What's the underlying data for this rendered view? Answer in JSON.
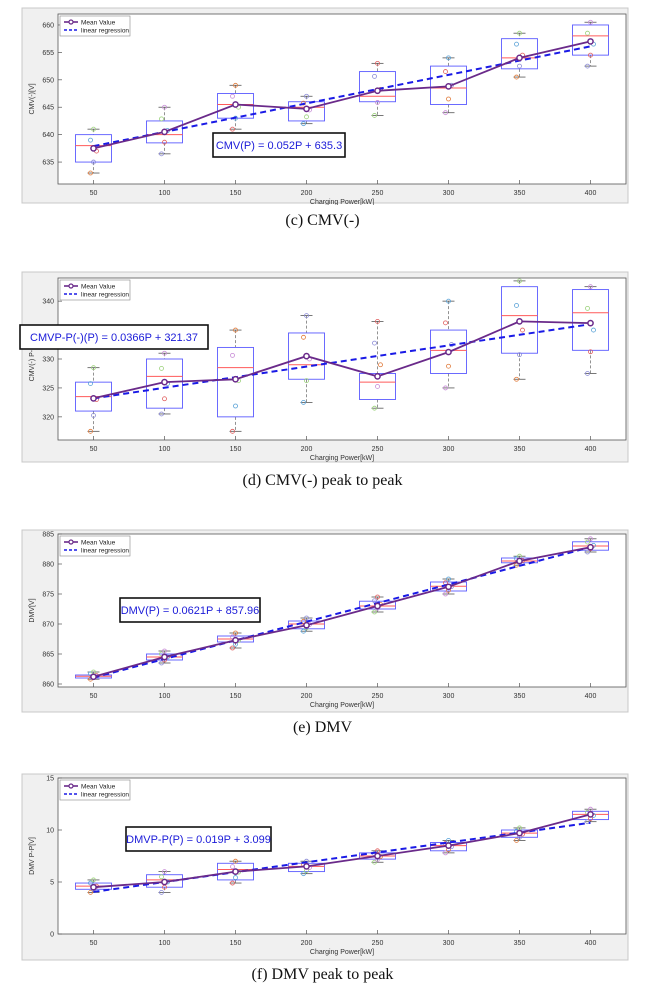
{
  "chart_data": [
    {
      "type": "box",
      "caption": "(c)  CMV(-)",
      "xlabel": "Charging Power[kW]",
      "ylabel": "CMV(-)[V]",
      "categories": [
        "50",
        "100",
        "150",
        "200",
        "250",
        "300",
        "350",
        "400"
      ],
      "ylim": [
        631,
        662
      ],
      "yticks": [
        635,
        640,
        645,
        650,
        655,
        660
      ],
      "legend": [
        "Mean Value",
        "linear regression"
      ],
      "legend_position": "top-left",
      "equation": "CMV(P) = 0.052P + 635.3",
      "series": [
        {
          "name": "Mean Value",
          "values": [
            637.5,
            640.5,
            645.5,
            644.7,
            648.0,
            648.8,
            654.0,
            657.0
          ]
        },
        {
          "name": "linear regression",
          "slope": 0.052,
          "intercept": 635.3
        }
      ],
      "boxes": [
        {
          "q1": 635,
          "median": 638,
          "q3": 640,
          "min": 633,
          "max": 641
        },
        {
          "q1": 638.5,
          "median": 640,
          "q3": 642.5,
          "min": 636.5,
          "max": 645
        },
        {
          "q1": 643,
          "median": 645.5,
          "q3": 647.5,
          "min": 641,
          "max": 649
        },
        {
          "q1": 642.5,
          "median": 645,
          "q3": 646,
          "min": 642,
          "max": 647
        },
        {
          "q1": 646,
          "median": 647,
          "q3": 651.5,
          "min": 643.5,
          "max": 653
        },
        {
          "q1": 645.5,
          "median": 648.5,
          "q3": 652.5,
          "min": 644,
          "max": 654
        },
        {
          "q1": 652,
          "median": 654,
          "q3": 657.5,
          "min": 650.5,
          "max": 658.5
        },
        {
          "q1": 654.5,
          "median": 658,
          "q3": 660,
          "min": 652.5,
          "max": 660.5
        }
      ]
    },
    {
      "type": "box",
      "caption": "(d)  CMV(-)  peak  to  peak",
      "xlabel": "Charging Power[kW]",
      "ylabel": "CMV(-) P-P[V]",
      "categories": [
        "50",
        "100",
        "150",
        "200",
        "250",
        "300",
        "350",
        "400"
      ],
      "ylim": [
        316,
        344
      ],
      "yticks": [
        320,
        325,
        330,
        335,
        340
      ],
      "legend": [
        "Mean Value",
        "linear regression"
      ],
      "legend_position": "top-left",
      "equation": "CMVP-P(-)(P) = 0.0366P + 321.37",
      "series": [
        {
          "name": "Mean Value",
          "values": [
            323.2,
            326.0,
            326.5,
            330.5,
            327.0,
            331.2,
            336.5,
            336.2
          ]
        },
        {
          "name": "linear regression",
          "slope": 0.0366,
          "intercept": 321.37
        }
      ],
      "boxes": [
        {
          "q1": 321,
          "median": 323.5,
          "q3": 326,
          "min": 317.5,
          "max": 328.5
        },
        {
          "q1": 321.5,
          "median": 327,
          "q3": 330,
          "min": 320.5,
          "max": 331
        },
        {
          "q1": 320,
          "median": 328.5,
          "q3": 332,
          "min": 317.5,
          "max": 335
        },
        {
          "q1": 326.5,
          "median": 329,
          "q3": 334.5,
          "min": 322.5,
          "max": 337.5
        },
        {
          "q1": 323,
          "median": 326,
          "q3": 327.5,
          "min": 321.5,
          "max": 336.5
        },
        {
          "q1": 327.5,
          "median": 331.5,
          "q3": 335,
          "min": 325,
          "max": 340
        },
        {
          "q1": 331,
          "median": 337.5,
          "q3": 342.5,
          "min": 326.5,
          "max": 343.5
        },
        {
          "q1": 331.5,
          "median": 338,
          "q3": 342,
          "min": 327.5,
          "max": 342.5
        }
      ]
    },
    {
      "type": "box",
      "caption": "(e)  DMV",
      "xlabel": "Charging Power[kW]",
      "ylabel": "DMV[V]",
      "categories": [
        "50",
        "100",
        "150",
        "200",
        "250",
        "300",
        "350",
        "400"
      ],
      "ylim": [
        859.5,
        885
      ],
      "yticks": [
        860,
        865,
        870,
        875,
        880,
        885
      ],
      "legend": [
        "Mean Value",
        "linear regression"
      ],
      "legend_position": "top-left",
      "equation": "DMV(P) = 0.0621P + 857.96",
      "series": [
        {
          "name": "Mean Value",
          "values": [
            861.2,
            864.5,
            867.3,
            869.8,
            873.0,
            876.2,
            880.5,
            882.8
          ]
        },
        {
          "name": "linear regression",
          "slope": 0.0621,
          "intercept": 857.96
        }
      ],
      "boxes": [
        {
          "q1": 861,
          "median": 861.3,
          "q3": 861.5,
          "min": 860.8,
          "max": 862
        },
        {
          "q1": 864,
          "median": 864.5,
          "q3": 865,
          "min": 863.5,
          "max": 865.5
        },
        {
          "q1": 867,
          "median": 867.5,
          "q3": 868,
          "min": 866,
          "max": 868.5
        },
        {
          "q1": 869.2,
          "median": 870,
          "q3": 870.5,
          "min": 868.8,
          "max": 871
        },
        {
          "q1": 872.5,
          "median": 873,
          "q3": 873.8,
          "min": 872,
          "max": 874.5
        },
        {
          "q1": 875.5,
          "median": 876.3,
          "q3": 877,
          "min": 875,
          "max": 877.5
        },
        {
          "q1": 880.2,
          "median": 880.5,
          "q3": 881,
          "min": 879.8,
          "max": 881.3
        },
        {
          "q1": 882.3,
          "median": 883,
          "q3": 883.7,
          "min": 882,
          "max": 884.2
        }
      ]
    },
    {
      "type": "box",
      "caption": "(f)  DMV  peak  to  peak",
      "xlabel": "Charging Power[kW]",
      "ylabel": "DMV P-P[V]",
      "categories": [
        "50",
        "100",
        "150",
        "200",
        "250",
        "300",
        "350",
        "400"
      ],
      "ylim": [
        0,
        15
      ],
      "yticks": [
        0,
        5,
        10,
        15
      ],
      "legend": [
        "Mean Value",
        "linear regression"
      ],
      "legend_position": "top-left",
      "equation": "DMVP-P(P) = 0.019P + 3.099",
      "series": [
        {
          "name": "Mean Value",
          "values": [
            4.5,
            5.0,
            6.0,
            6.5,
            7.5,
            8.5,
            9.7,
            11.5
          ]
        },
        {
          "name": "linear regression",
          "slope": 0.019,
          "intercept": 3.099
        }
      ],
      "boxes": [
        {
          "q1": 4.3,
          "median": 4.6,
          "q3": 4.9,
          "min": 4.0,
          "max": 5.2
        },
        {
          "q1": 4.5,
          "median": 5.2,
          "q3": 5.7,
          "min": 4.0,
          "max": 6.0
        },
        {
          "q1": 5.2,
          "median": 6.2,
          "q3": 6.8,
          "min": 4.9,
          "max": 7.0
        },
        {
          "q1": 6.0,
          "median": 6.5,
          "q3": 6.8,
          "min": 5.8,
          "max": 7.0
        },
        {
          "q1": 7.2,
          "median": 7.5,
          "q3": 7.8,
          "min": 6.9,
          "max": 8.0
        },
        {
          "q1": 8.0,
          "median": 8.5,
          "q3": 8.8,
          "min": 7.8,
          "max": 9.0
        },
        {
          "q1": 9.3,
          "median": 9.7,
          "q3": 10.0,
          "min": 9.0,
          "max": 10.2
        },
        {
          "q1": 11.0,
          "median": 11.5,
          "q3": 11.8,
          "min": 10.8,
          "max": 12.0
        }
      ]
    }
  ]
}
